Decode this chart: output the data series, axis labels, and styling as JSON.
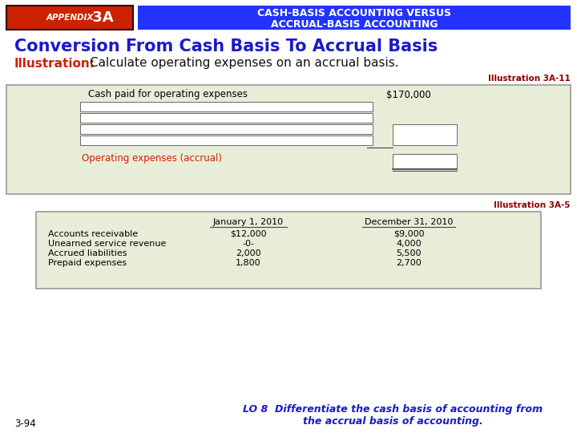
{
  "bg_color": "#ffffff",
  "header_red_bg": "#cc2200",
  "header_red_text_appendix": "APPENDIX",
  "header_red_text_3a": " 3A",
  "header_blue_bg": "#2233ff",
  "header_blue_text1": "CASH-BASIS ACCOUNTING VERSUS",
  "header_blue_text2": "ACCRUAL-BASIS ACCOUNTING",
  "title_text": "Conversion From Cash Basis To Accrual Basis",
  "title_color": "#1a1acc",
  "illus_label": "Illustration:",
  "illus_label_color": "#cc2200",
  "illus_text": "  Calculate operating expenses on an accrual basis.",
  "illus_text_color": "#111111",
  "illus_ref1": "Illustration 3A-11",
  "illus_ref1_color": "#8B0000",
  "box1_bg": "#e8edd8",
  "box1_border": "#999999",
  "box1_line1": "Cash paid for operating expenses",
  "box1_amount": "$170,000",
  "box1_accrual_label": "Operating expenses (accrual)",
  "box1_accrual_color": "#cc2200",
  "illus_ref2": "Illustration 3A-5",
  "illus_ref2_color": "#8B0000",
  "box2_bg": "#e8edd8",
  "box2_border": "#999999",
  "box2_col1": "January 1, 2010",
  "box2_col2": "December 31, 2010",
  "box2_rows": [
    [
      "Accounts receivable",
      "$12,000",
      "$9,000"
    ],
    [
      "Unearned service revenue",
      "-0-",
      "4,000"
    ],
    [
      "Accrued liabilities",
      "2,000",
      "5,500"
    ],
    [
      "Prepaid expenses",
      "1,800",
      "2,700"
    ]
  ],
  "footer_left": "3-94",
  "footer_center": "LO 8  Differentiate the cash basis of accounting from\nthe accrual basis of accounting.",
  "footer_color": "#1a1acc"
}
